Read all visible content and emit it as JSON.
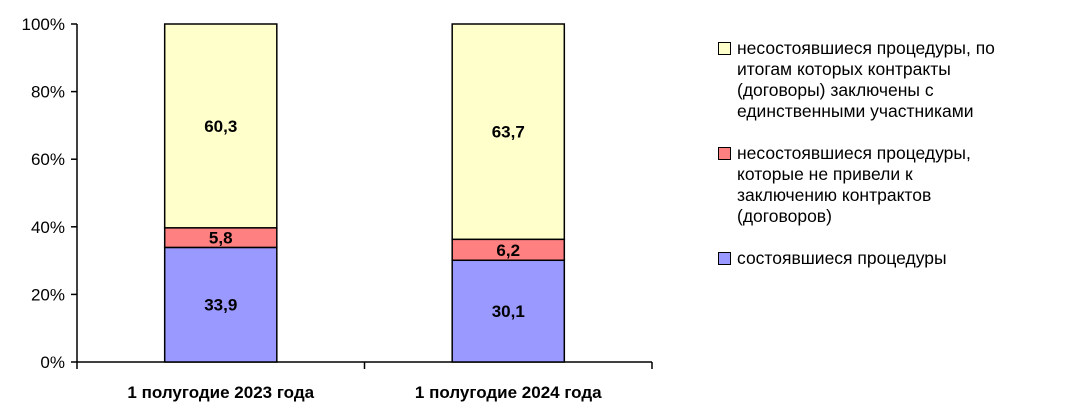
{
  "chart_data": {
    "type": "bar",
    "stacked": true,
    "percent_scale": true,
    "categories": [
      "1 полугодие 2023 года",
      "1 полугодие 2024 года"
    ],
    "series": [
      {
        "name": "состоявшиеся процедуры",
        "values": [
          33.9,
          30.1
        ],
        "labels": [
          "33,9",
          "30,1"
        ],
        "color": "#9999ff"
      },
      {
        "name": "несостоявшиеся процедуры,\nкоторые не привели к\nзаключению контрактов\n(договоров)",
        "values": [
          5.8,
          6.2
        ],
        "labels": [
          "5,8",
          "6,2"
        ],
        "color": "#ff8080"
      },
      {
        "name": "несостоявшиеся процедуры, по\nитогам которых контракты\n(договоры) заключены с\nединственными участниками",
        "values": [
          60.3,
          63.7
        ],
        "labels": [
          "60,3",
          "63,7"
        ],
        "color": "#ffffcc"
      }
    ],
    "ylim": [
      0,
      100
    ],
    "yticks": [
      "0%",
      "20%",
      "40%",
      "60%",
      "80%",
      "100%"
    ],
    "grid": false,
    "legend_position": "right",
    "title": "",
    "xlabel": "",
    "ylabel": ""
  }
}
